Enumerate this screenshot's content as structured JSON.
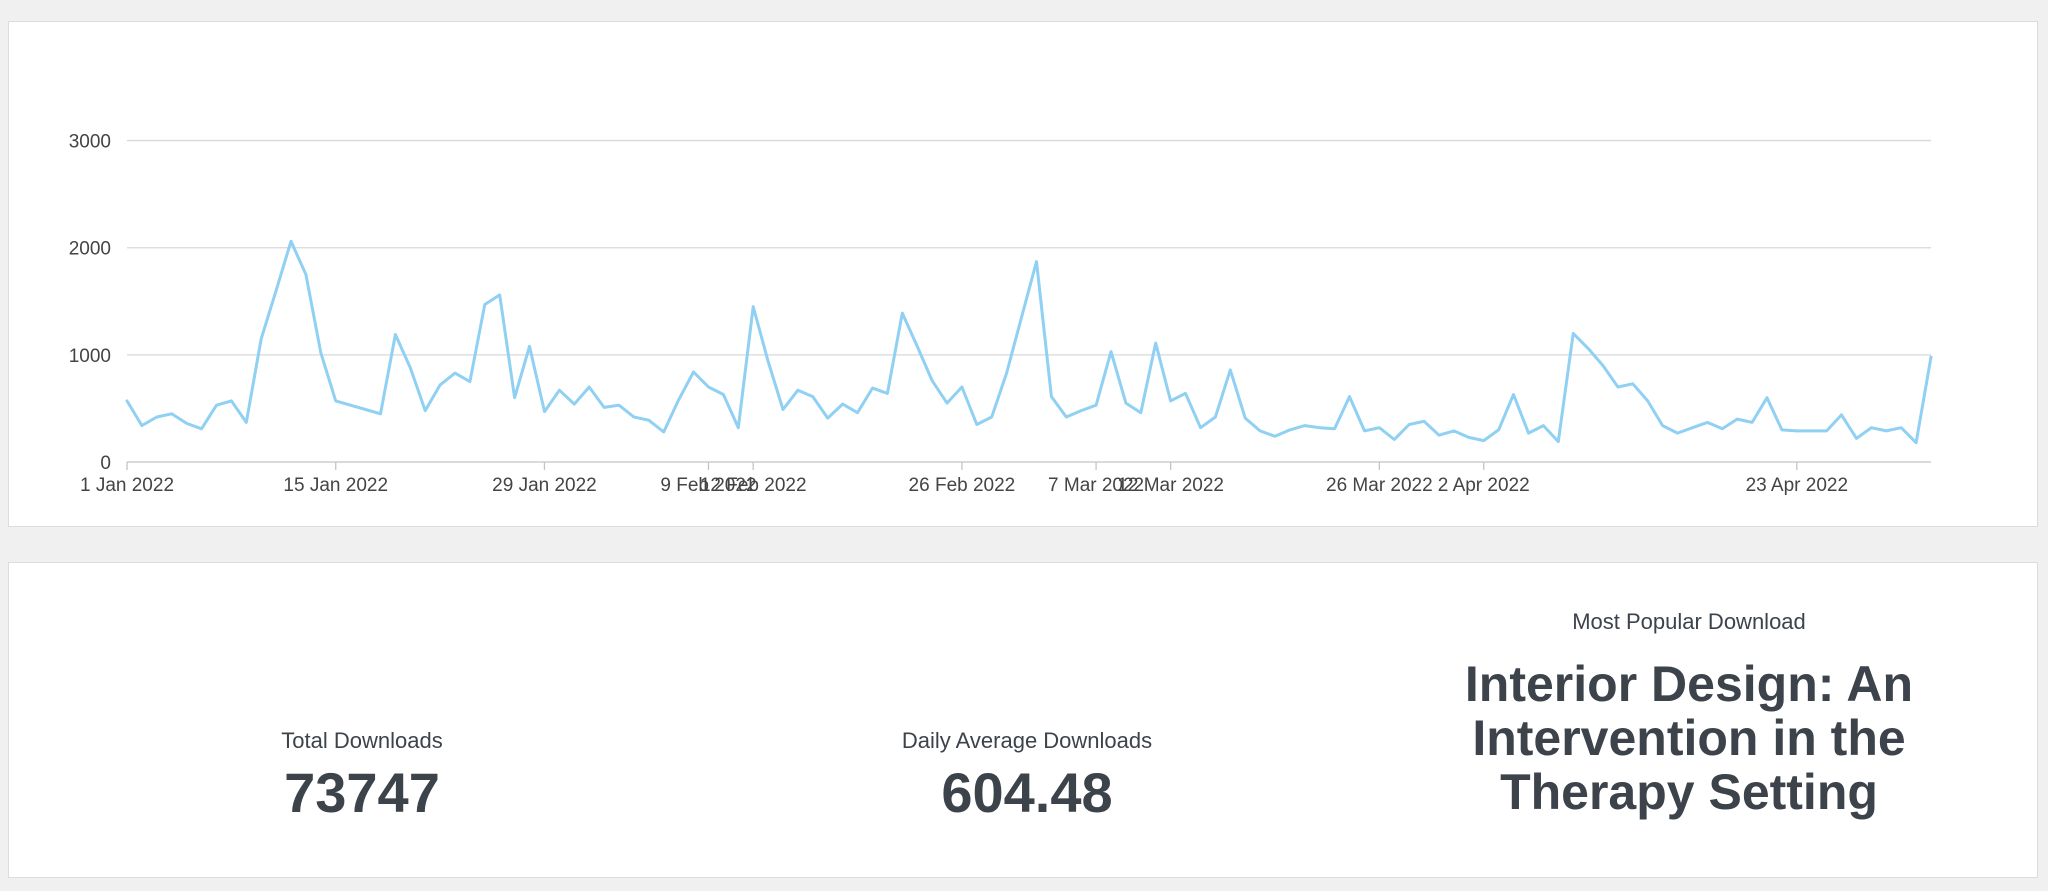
{
  "chart_data": {
    "type": "line",
    "title": "",
    "xlabel": "",
    "ylabel": "",
    "ylim": [
      0,
      3500
    ],
    "y_ticks": [
      0,
      1000,
      2000,
      3000
    ],
    "grid": true,
    "x_tick_labels": [
      {
        "date": "2022-01-01",
        "label": "1 Jan 2022"
      },
      {
        "date": "2022-01-15",
        "label": "15 Jan 2022"
      },
      {
        "date": "2022-01-29",
        "label": "29 Jan 2022"
      },
      {
        "date": "2022-02-09",
        "label": "9 Feb 2022"
      },
      {
        "date": "2022-02-12",
        "label": "12 Feb 2022"
      },
      {
        "date": "2022-02-26",
        "label": "26 Feb 2022"
      },
      {
        "date": "2022-03-07",
        "label": "7 Mar 2022"
      },
      {
        "date": "2022-03-12",
        "label": "12 Mar 2022"
      },
      {
        "date": "2022-03-26",
        "label": "26 Mar 2022"
      },
      {
        "date": "2022-04-02",
        "label": "2 Apr 2022"
      },
      {
        "date": "2022-04-23",
        "label": "23 Apr 2022"
      }
    ],
    "x_start": "2022-01-01",
    "x_end": "2022-05-02",
    "series": [
      {
        "color": "#8fd0f3",
        "values": [
          570,
          340,
          420,
          450,
          360,
          310,
          530,
          570,
          370,
          1150,
          1600,
          2060,
          1750,
          1020,
          570,
          530,
          490,
          450,
          1190,
          880,
          480,
          720,
          830,
          750,
          1470,
          1560,
          600,
          1080,
          470,
          670,
          540,
          700,
          510,
          530,
          420,
          390,
          280,
          580,
          840,
          700,
          630,
          320,
          1450,
          940,
          490,
          670,
          610,
          410,
          540,
          460,
          690,
          640,
          1390,
          1080,
          760,
          550,
          700,
          350,
          420,
          830,
          1350,
          1870,
          610,
          420,
          480,
          530,
          1030,
          550,
          460,
          1110,
          570,
          640,
          320,
          420,
          860,
          410,
          290,
          240,
          300,
          340,
          320,
          310,
          610,
          290,
          320,
          210,
          350,
          380,
          250,
          290,
          230,
          200,
          300,
          630,
          270,
          340,
          190,
          1200,
          1060,
          900,
          700,
          730,
          570,
          340,
          270,
          320,
          370,
          310,
          400,
          370,
          600,
          300,
          290,
          290,
          290,
          440,
          220,
          320,
          290,
          320,
          180,
          980
        ]
      }
    ]
  },
  "stats": {
    "total": {
      "label": "Total Downloads",
      "value": "73747"
    },
    "average": {
      "label": "Daily Average Downloads",
      "value": "604.48"
    },
    "popular": {
      "label": "Most Popular Download",
      "value": "Interior Design: An Intervention in the Therapy Setting"
    }
  }
}
